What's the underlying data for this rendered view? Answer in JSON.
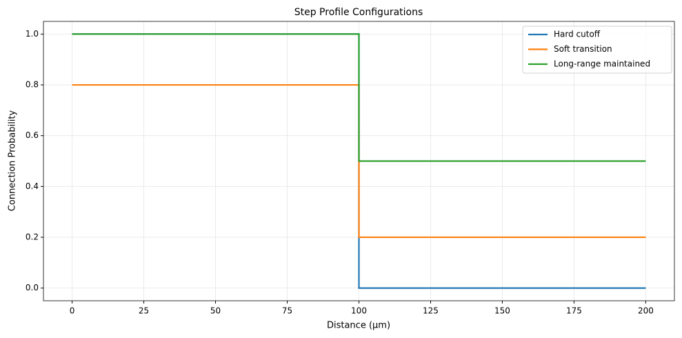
{
  "chart_data": {
    "type": "line",
    "title": "Step Profile Configurations",
    "x_label": "Distance (μm)",
    "y_label": "Connection Probability",
    "x": [
      0,
      100,
      100,
      200
    ],
    "series": [
      {
        "name": "Hard cutoff",
        "color": "#1f77b4",
        "values": [
          1.0,
          1.0,
          0.0,
          0.0
        ]
      },
      {
        "name": "Soft transition",
        "color": "#ff7f0e",
        "values": [
          0.8,
          0.8,
          0.2,
          0.2
        ]
      },
      {
        "name": "Long-range maintained",
        "color": "#2ca02c",
        "values": [
          1.0,
          1.0,
          0.5,
          0.5
        ]
      }
    ],
    "xlim": [
      -10,
      210
    ],
    "xticks": [
      0,
      25,
      50,
      75,
      100,
      125,
      150,
      175,
      200
    ],
    "ylim": [
      -0.05,
      1.05
    ],
    "yticks": [
      {
        "value": 0,
        "label": "0.0"
      },
      {
        "value": 0.2,
        "label": "0.2"
      },
      {
        "value": 0.4,
        "label": "0.4"
      },
      {
        "value": 0.6,
        "label": "0.6"
      },
      {
        "value": 0.8,
        "label": "0.8"
      },
      {
        "value": 1.0,
        "label": "1.0"
      }
    ],
    "grid": true,
    "legend": "upper right"
  }
}
